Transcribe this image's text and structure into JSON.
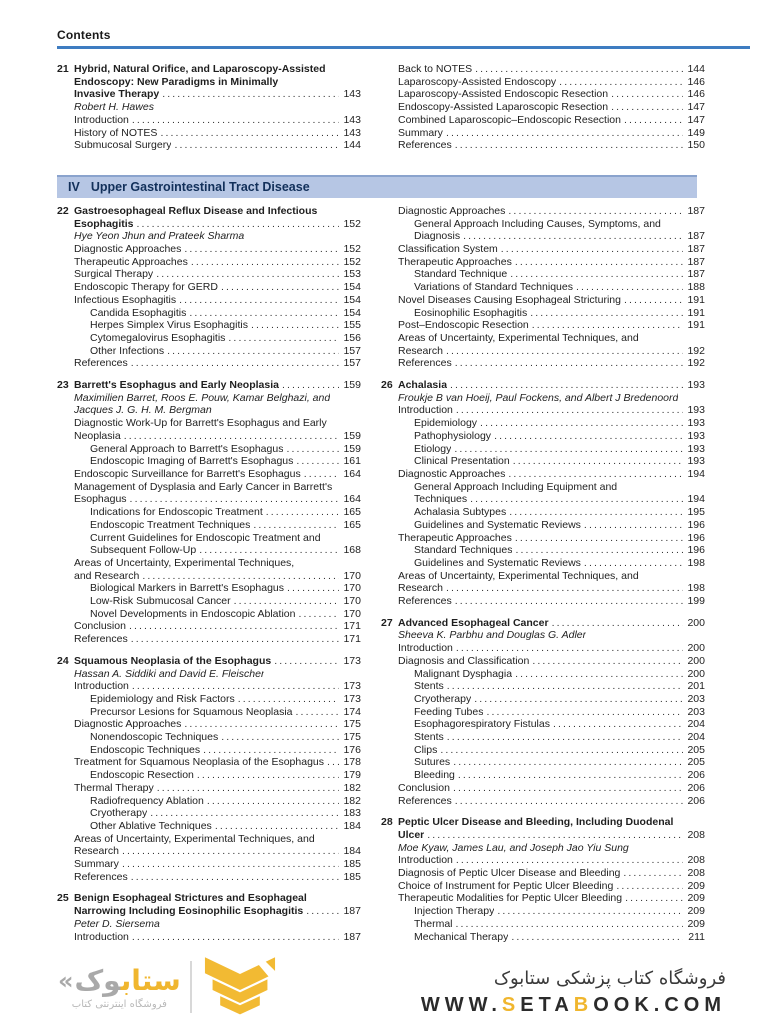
{
  "header": {
    "title": "Contents"
  },
  "section_bar": {
    "numeral": "IV",
    "label": "Upper Gastrointestinal Tract Disease"
  },
  "colors": {
    "accent_blue": "#3e7cc1",
    "section_bar_bg": "#b6c6e4",
    "section_bar_text": "#12305a",
    "gold": "#f0b62e",
    "gray": "#a9a9a9"
  },
  "toc": {
    "top": {
      "left": [
        {
          "num": "21",
          "t": "Hybrid, Natural Orifice, and Laparoscopy-Assisted",
          "s": "b"
        },
        {
          "t": "Endoscopy: New Paradigms in Minimally",
          "s": "b"
        },
        {
          "t": "Invasive Therapy",
          "p": "143",
          "s": "b"
        },
        {
          "t": "Robert H. Hawes",
          "s": "i"
        },
        {
          "t": "Introduction",
          "p": "143"
        },
        {
          "t": "History of NOTES",
          "p": "143"
        },
        {
          "t": "Submucosal Surgery",
          "p": "144"
        }
      ],
      "right": [
        {
          "t": "Back to NOTES",
          "p": "144"
        },
        {
          "t": "Laparoscopy-Assisted Endoscopy",
          "p": "146"
        },
        {
          "t": "Laparoscopy-Assisted Endoscopic Resection",
          "p": "146"
        },
        {
          "t": "Endoscopy-Assisted Laparoscopic Resection",
          "p": "147"
        },
        {
          "t": "Combined Laparoscopic–Endoscopic Resection",
          "p": "147"
        },
        {
          "t": "Summary",
          "p": "149"
        },
        {
          "t": "References",
          "p": "150"
        }
      ]
    },
    "main": {
      "left": [
        [
          {
            "num": "22",
            "t": "Gastroesophageal Reflux Disease and Infectious",
            "s": "b"
          },
          {
            "t": "Esophagitis",
            "p": "152",
            "s": "b"
          },
          {
            "t": "Hye Yeon Jhun and Prateek Sharma",
            "s": "i"
          },
          {
            "t": "Diagnostic Approaches",
            "p": "152"
          },
          {
            "t": "Therapeutic Approaches",
            "p": "152"
          },
          {
            "t": "Surgical Therapy",
            "p": "153"
          },
          {
            "t": "Endoscopic Therapy for GERD",
            "p": "154"
          },
          {
            "t": "Infectious Esophagitis",
            "p": "154"
          },
          {
            "t": "Candida Esophagitis",
            "p": "154",
            "lv": 2
          },
          {
            "t": "Herpes Simplex Virus Esophagitis",
            "p": "155",
            "lv": 2
          },
          {
            "t": "Cytomegalovirus Esophagitis",
            "p": "156",
            "lv": 2
          },
          {
            "t": "Other Infections",
            "p": "157",
            "lv": 2
          },
          {
            "t": "References",
            "p": "157"
          }
        ],
        [
          {
            "num": "23",
            "t": "Barrett's Esophagus and Early Neoplasia",
            "p": "159",
            "s": "b"
          },
          {
            "t": "Maximilien Barret, Roos E. Pouw, Kamar Belghazi, and",
            "s": "i"
          },
          {
            "t": "Jacques J. G. H. M. Bergman",
            "s": "i"
          },
          {
            "t": "Diagnostic Work-Up for Barrett's Esophagus and Early"
          },
          {
            "t": "Neoplasia",
            "p": "159"
          },
          {
            "t": "General Approach to Barrett's Esophagus",
            "p": "159",
            "lv": 2
          },
          {
            "t": "Endoscopic Imaging of Barrett's Esophagus",
            "p": "161",
            "lv": 2
          },
          {
            "t": "Endoscopic Surveillance for Barrett's Esophagus",
            "p": "164"
          },
          {
            "t": "Management of Dysplasia and Early Cancer in Barrett's"
          },
          {
            "t": "Esophagus",
            "p": "164"
          },
          {
            "t": "Indications for Endoscopic Treatment",
            "p": "165",
            "lv": 2
          },
          {
            "t": "Endoscopic Treatment Techniques",
            "p": "165",
            "lv": 2
          },
          {
            "t": "Current Guidelines for Endoscopic Treatment and",
            "lv": 2
          },
          {
            "t": "Subsequent Follow-Up",
            "p": "168",
            "lv": 2
          },
          {
            "t": "Areas of Uncertainty, Experimental Techniques,"
          },
          {
            "t": "and Research",
            "p": "170"
          },
          {
            "t": "Biological Markers in Barrett's Esophagus",
            "p": "170",
            "lv": 2
          },
          {
            "t": "Low-Risk Submucosal Cancer",
            "p": "170",
            "lv": 2
          },
          {
            "t": "Novel Developments in Endoscopic Ablation",
            "p": "170",
            "lv": 2
          },
          {
            "t": "Conclusion",
            "p": "171"
          },
          {
            "t": "References",
            "p": "171"
          }
        ],
        [
          {
            "num": "24",
            "t": "Squamous Neoplasia of the Esophagus",
            "p": "173",
            "s": "b"
          },
          {
            "t": "Hassan A. Siddiki and David E. Fleischer",
            "s": "i"
          },
          {
            "t": "Introduction",
            "p": "173"
          },
          {
            "t": "Epidemiology and Risk Factors",
            "p": "173",
            "lv": 2
          },
          {
            "t": "Precursor Lesions for Squamous Neoplasia",
            "p": "174",
            "lv": 2
          },
          {
            "t": "Diagnostic Approaches",
            "p": "175"
          },
          {
            "t": "Nonendoscopic Techniques",
            "p": "175",
            "lv": 2
          },
          {
            "t": "Endoscopic Techniques",
            "p": "176",
            "lv": 2
          },
          {
            "t": "Treatment for Squamous Neoplasia of the Esophagus",
            "p": "178"
          },
          {
            "t": "Endoscopic Resection",
            "p": "179",
            "lv": 2
          },
          {
            "t": "Thermal Therapy",
            "p": "182"
          },
          {
            "t": "Radiofrequency Ablation",
            "p": "182",
            "lv": 2
          },
          {
            "t": "Cryotherapy",
            "p": "183",
            "lv": 2
          },
          {
            "t": "Other Ablative Techniques",
            "p": "184",
            "lv": 2
          },
          {
            "t": "Areas of Uncertainty, Experimental Techniques, and"
          },
          {
            "t": "Research",
            "p": "184"
          },
          {
            "t": "Summary",
            "p": "185"
          },
          {
            "t": "References",
            "p": "185"
          }
        ],
        [
          {
            "num": "25",
            "t": "Benign Esophageal Strictures and Esophageal",
            "s": "b"
          },
          {
            "t": "Narrowing Including Eosinophilic Esophagitis",
            "p": "187",
            "s": "b"
          },
          {
            "t": "Peter D. Siersema",
            "s": "i"
          },
          {
            "t": "Introduction",
            "p": "187"
          }
        ]
      ],
      "right": [
        [
          {
            "t": "Diagnostic Approaches",
            "p": "187"
          },
          {
            "t": "General Approach Including Causes, Symptoms, and",
            "lv": 2
          },
          {
            "t": "Diagnosis",
            "p": "187",
            "lv": 2
          },
          {
            "t": "Classification System",
            "p": "187"
          },
          {
            "t": "Therapeutic Approaches",
            "p": "187"
          },
          {
            "t": "Standard Technique",
            "p": "187",
            "lv": 2
          },
          {
            "t": "Variations of Standard Techniques",
            "p": "188",
            "lv": 2
          },
          {
            "t": "Novel Diseases Causing Esophageal Stricturing",
            "p": "191"
          },
          {
            "t": "Eosinophilic Esophagitis",
            "p": "191",
            "lv": 2
          },
          {
            "t": "Post–Endoscopic Resection",
            "p": "191"
          },
          {
            "t": "Areas of Uncertainty, Experimental Techniques, and"
          },
          {
            "t": "Research",
            "p": "192"
          },
          {
            "t": "References",
            "p": "192"
          }
        ],
        [
          {
            "num": "26",
            "t": "Achalasia",
            "p": "193",
            "s": "b"
          },
          {
            "t": "Froukje B van Hoeij, Paul Fockens, and Albert J Bredenoord",
            "s": "i"
          },
          {
            "t": "Introduction",
            "p": "193"
          },
          {
            "t": "Epidemiology",
            "p": "193",
            "lv": 2
          },
          {
            "t": "Pathophysiology",
            "p": "193",
            "lv": 2
          },
          {
            "t": "Etiology",
            "p": "193",
            "lv": 2
          },
          {
            "t": "Clinical Presentation",
            "p": "193",
            "lv": 2
          },
          {
            "t": "Diagnostic Approaches",
            "p": "194"
          },
          {
            "t": "General Approach Including Equipment and",
            "lv": 2
          },
          {
            "t": "Techniques",
            "p": "194",
            "lv": 2
          },
          {
            "t": "Achalasia Subtypes",
            "p": "195",
            "lv": 2
          },
          {
            "t": "Guidelines and Systematic Reviews",
            "p": "196",
            "lv": 2
          },
          {
            "t": "Therapeutic Approaches",
            "p": "196"
          },
          {
            "t": "Standard Techniques",
            "p": "196",
            "lv": 2
          },
          {
            "t": "Guidelines and Systematic Reviews",
            "p": "198",
            "lv": 2
          },
          {
            "t": "Areas of Uncertainty, Experimental Techniques, and"
          },
          {
            "t": "Research",
            "p": "198"
          },
          {
            "t": "References",
            "p": "199"
          }
        ],
        [
          {
            "num": "27",
            "t": "Advanced Esophageal Cancer",
            "p": "200",
            "s": "b"
          },
          {
            "t": "Sheeva K. Parbhu and Douglas G. Adler",
            "s": "i"
          },
          {
            "t": "Introduction",
            "p": "200"
          },
          {
            "t": "Diagnosis and Classification",
            "p": "200"
          },
          {
            "t": "Malignant Dysphagia",
            "p": "200",
            "lv": 2
          },
          {
            "t": "Stents",
            "p": "201",
            "lv": 2
          },
          {
            "t": "Cryotherapy",
            "p": "203",
            "lv": 2
          },
          {
            "t": "Feeding Tubes",
            "p": "203",
            "lv": 2
          },
          {
            "t": "Esophagorespiratory Fistulas",
            "p": "204",
            "lv": 2
          },
          {
            "t": "Stents",
            "p": "204",
            "lv": 2
          },
          {
            "t": "Clips",
            "p": "205",
            "lv": 2
          },
          {
            "t": "Sutures",
            "p": "205",
            "lv": 2
          },
          {
            "t": "Bleeding",
            "p": "206",
            "lv": 2
          },
          {
            "t": "Conclusion",
            "p": "206"
          },
          {
            "t": "References",
            "p": "206"
          }
        ],
        [
          {
            "num": "28",
            "t": "Peptic Ulcer Disease and Bleeding, Including Duodenal",
            "s": "b"
          },
          {
            "t": "Ulcer",
            "p": "208",
            "s": "b"
          },
          {
            "t": "Moe Kyaw, James Lau, and Joseph Jao Yiu Sung",
            "s": "i"
          },
          {
            "t": "Introduction",
            "p": "208"
          },
          {
            "t": "Diagnosis of Peptic Ulcer Disease and Bleeding",
            "p": "208"
          },
          {
            "t": "Choice of Instrument for Peptic Ulcer Bleeding",
            "p": "209"
          },
          {
            "t": "Therapeutic Modalities for Peptic Ulcer Bleeding",
            "p": "209"
          },
          {
            "t": "Injection Therapy",
            "p": "209",
            "lv": 2
          },
          {
            "t": "Thermal",
            "p": "209",
            "lv": 2
          },
          {
            "t": "Mechanical Therapy",
            "p": "211",
            "lv": 2
          }
        ]
      ]
    }
  },
  "footer": {
    "logo": {
      "guillemet": "«",
      "wordmark_gold": "ستاب",
      "wordmark_gray": "وک",
      "caption": "فروشگاه اینترنتی کتاب",
      "emblem_icon": "setabook-chevron-emblem"
    },
    "store_title": "فروشگاه کتاب پزشکی ستابوک",
    "url_parts": [
      {
        "t": "WWW.",
        "gold": false
      },
      {
        "t": "S",
        "gold": true
      },
      {
        "t": "ETA",
        "gold": false
      },
      {
        "t": "B",
        "gold": true
      },
      {
        "t": "OOK.COM",
        "gold": false
      }
    ]
  }
}
